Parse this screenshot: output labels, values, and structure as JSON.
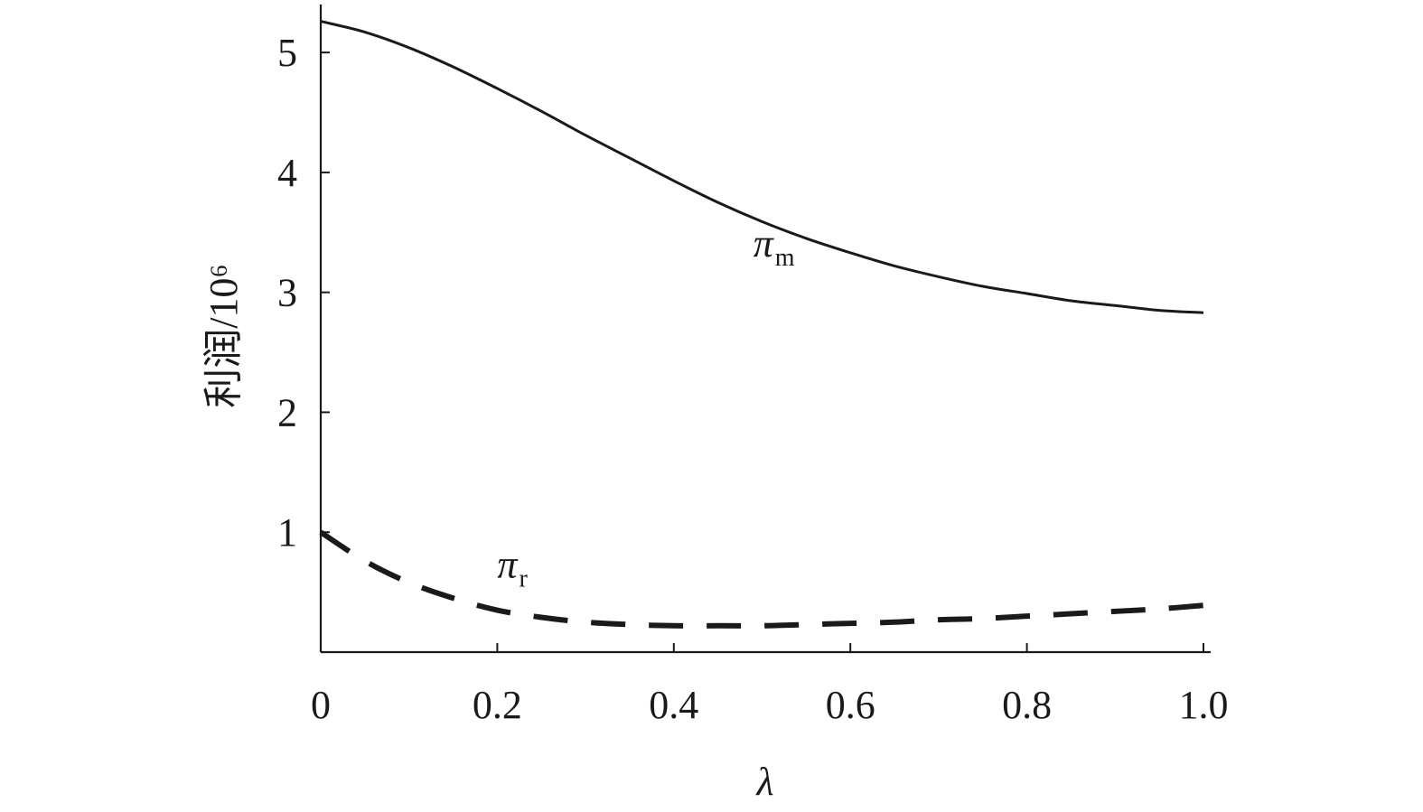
{
  "chart_data": {
    "type": "line",
    "title": "",
    "xlabel": "λ",
    "ylabel": "利润/10⁶",
    "xlim": [
      0,
      1.0
    ],
    "ylim": [
      0,
      5.4
    ],
    "x_ticks": [
      0,
      0.2,
      0.4,
      0.6,
      0.8,
      1.0
    ],
    "x_tick_labels": [
      "0",
      "0.2",
      "0.4",
      "0.6",
      "0.8",
      "1.0"
    ],
    "y_ticks": [
      1,
      2,
      3,
      4,
      5
    ],
    "y_tick_labels": [
      "1",
      "2",
      "3",
      "4",
      "5"
    ],
    "grid": false,
    "legend": "none",
    "series": [
      {
        "name": "πm",
        "label_main": "π",
        "label_sub": "m",
        "style": "solid",
        "color": "#1a1a1a",
        "x": [
          0,
          0.05,
          0.1,
          0.15,
          0.2,
          0.25,
          0.3,
          0.35,
          0.4,
          0.45,
          0.5,
          0.55,
          0.6,
          0.65,
          0.7,
          0.75,
          0.8,
          0.85,
          0.9,
          0.95,
          1.0
        ],
        "y": [
          5.26,
          5.17,
          5.04,
          4.88,
          4.7,
          4.51,
          4.31,
          4.12,
          3.93,
          3.75,
          3.59,
          3.45,
          3.33,
          3.22,
          3.13,
          3.05,
          2.99,
          2.93,
          2.89,
          2.85,
          2.83
        ]
      },
      {
        "name": "πr",
        "label_main": "π",
        "label_sub": "r",
        "style": "dashed",
        "color": "#1a1a1a",
        "x": [
          0,
          0.05,
          0.1,
          0.15,
          0.2,
          0.25,
          0.3,
          0.35,
          0.4,
          0.45,
          0.5,
          0.55,
          0.6,
          0.65,
          0.7,
          0.75,
          0.8,
          0.85,
          0.9,
          0.95,
          1.0
        ],
        "y": [
          1.0,
          0.76,
          0.58,
          0.45,
          0.35,
          0.29,
          0.25,
          0.23,
          0.22,
          0.22,
          0.22,
          0.23,
          0.24,
          0.25,
          0.27,
          0.28,
          0.3,
          0.32,
          0.34,
          0.36,
          0.39
        ]
      }
    ],
    "annotations": [
      {
        "series": 0,
        "x": 0.49,
        "y": 3.3
      },
      {
        "series": 1,
        "x": 0.2,
        "y": 0.62
      }
    ]
  }
}
